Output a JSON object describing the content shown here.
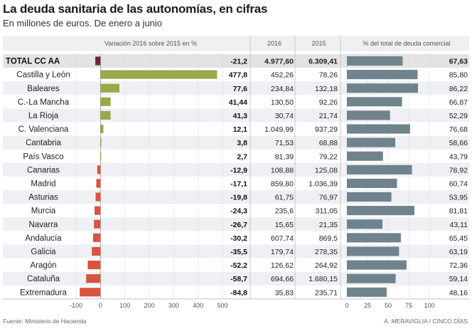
{
  "title": "La deuda sanitaria de las autonomías, en cifras",
  "subtitle": "En millones de euros. De enero a junio",
  "source": "Fuente: Ministerio de Hacienda",
  "credit": "A. MERAVIGLIA / CINCO DÍAS",
  "colors": {
    "positive": "#9aa84a",
    "negative": "#d9533f",
    "total": "#6b2a2e",
    "share": "#6f838d",
    "total_row": "#e3e3e3",
    "alt_row": "#eef0f3",
    "header_bg": "#f0f0f0"
  },
  "chart_data": {
    "type": "table",
    "headers": {
      "variation": "Variación 2016 sobre 2015 en %",
      "y2016": "2016",
      "y2015": "2015",
      "share": "% del total de deuda comercial"
    },
    "variation_axis": {
      "min": -100,
      "max": 500,
      "ticks": [
        "-100",
        "0",
        "100",
        "200",
        "300",
        "400",
        "500"
      ]
    },
    "share_axis": {
      "min": 0,
      "max": 100,
      "ticks": [
        "0",
        "25",
        "50",
        "75",
        "100"
      ]
    },
    "rows": [
      {
        "name": "TOTAL CC AA",
        "variation": -21.2,
        "var_label": "-21,2",
        "v2016": "4.977,60",
        "v2015": "6.309,41",
        "share": 67.63,
        "share_label": "67,63",
        "total": true
      },
      {
        "name": "Castilla y León",
        "variation": 477.8,
        "var_label": "477,8",
        "v2016": "452,26",
        "v2015": "78,26",
        "share": 85.8,
        "share_label": "85,80"
      },
      {
        "name": "Baleares",
        "variation": 77.6,
        "var_label": "77,6",
        "v2016": "234,84",
        "v2015": "132,18",
        "share": 86.22,
        "share_label": "86,22"
      },
      {
        "name": "C.-La Mancha",
        "variation": 41.44,
        "var_label": "41,44",
        "v2016": "130,50",
        "v2015": "92,26",
        "share": 66.87,
        "share_label": "66,87"
      },
      {
        "name": "La Rioja",
        "variation": 41.3,
        "var_label": "41,3",
        "v2016": "30,74",
        "v2015": "21,74",
        "share": 52.29,
        "share_label": "52,29"
      },
      {
        "name": "C. Valenciana",
        "variation": 12.1,
        "var_label": "12,1",
        "v2016": "1.049,99",
        "v2015": "937,29",
        "share": 76.68,
        "share_label": "76,68"
      },
      {
        "name": "Cantabria",
        "variation": 3.8,
        "var_label": "3,8",
        "v2016": "71,53",
        "v2015": "68,88",
        "share": 58.66,
        "share_label": "58,66"
      },
      {
        "name": "País Vasco",
        "variation": 2.7,
        "var_label": "2,7",
        "v2016": "81,39",
        "v2015": "79,22",
        "share": 43.79,
        "share_label": "43,79"
      },
      {
        "name": "Canarias",
        "variation": -12.9,
        "var_label": "-12,9",
        "v2016": "108,88",
        "v2015": "125,08",
        "share": 78.92,
        "share_label": "78,92"
      },
      {
        "name": "Madrid",
        "variation": -17.1,
        "var_label": "-17,1",
        "v2016": "859,80",
        "v2015": "1.036,39",
        "share": 60.74,
        "share_label": "60,74"
      },
      {
        "name": "Asturias",
        "variation": -19.8,
        "var_label": "-19,8",
        "v2016": "61,75",
        "v2015": "76,97",
        "share": 53.95,
        "share_label": "53,95"
      },
      {
        "name": "Murcia",
        "variation": -24.3,
        "var_label": "-24,3",
        "v2016": "235,6",
        "v2015": "311,05",
        "share": 81.81,
        "share_label": "81,81"
      },
      {
        "name": "Navarra",
        "variation": -26.7,
        "var_label": "-26,7",
        "v2016": "15,65",
        "v2015": "21,35",
        "share": 43.11,
        "share_label": "43,11"
      },
      {
        "name": "Andalucía",
        "variation": -30.2,
        "var_label": "-30,2",
        "v2016": "607,74",
        "v2015": "869,5",
        "share": 65.45,
        "share_label": "65,45"
      },
      {
        "name": "Galicia",
        "variation": -35.5,
        "var_label": "-35,5",
        "v2016": "179,74",
        "v2015": "278,35",
        "share": 63.19,
        "share_label": "63,19"
      },
      {
        "name": "Aragón",
        "variation": -52.2,
        "var_label": "-52,2",
        "v2016": "126,62",
        "v2015": "264,92",
        "share": 72.36,
        "share_label": "72,36"
      },
      {
        "name": "Cataluña",
        "variation": -58.7,
        "var_label": "-58,7",
        "v2016": "694,66",
        "v2015": "1.680,15",
        "share": 59.14,
        "share_label": "59,14"
      },
      {
        "name": "Extremadura",
        "variation": -84.8,
        "var_label": "-84,8",
        "v2016": "35,83",
        "v2015": "235,71",
        "share": 48.16,
        "share_label": "48,16"
      }
    ]
  }
}
